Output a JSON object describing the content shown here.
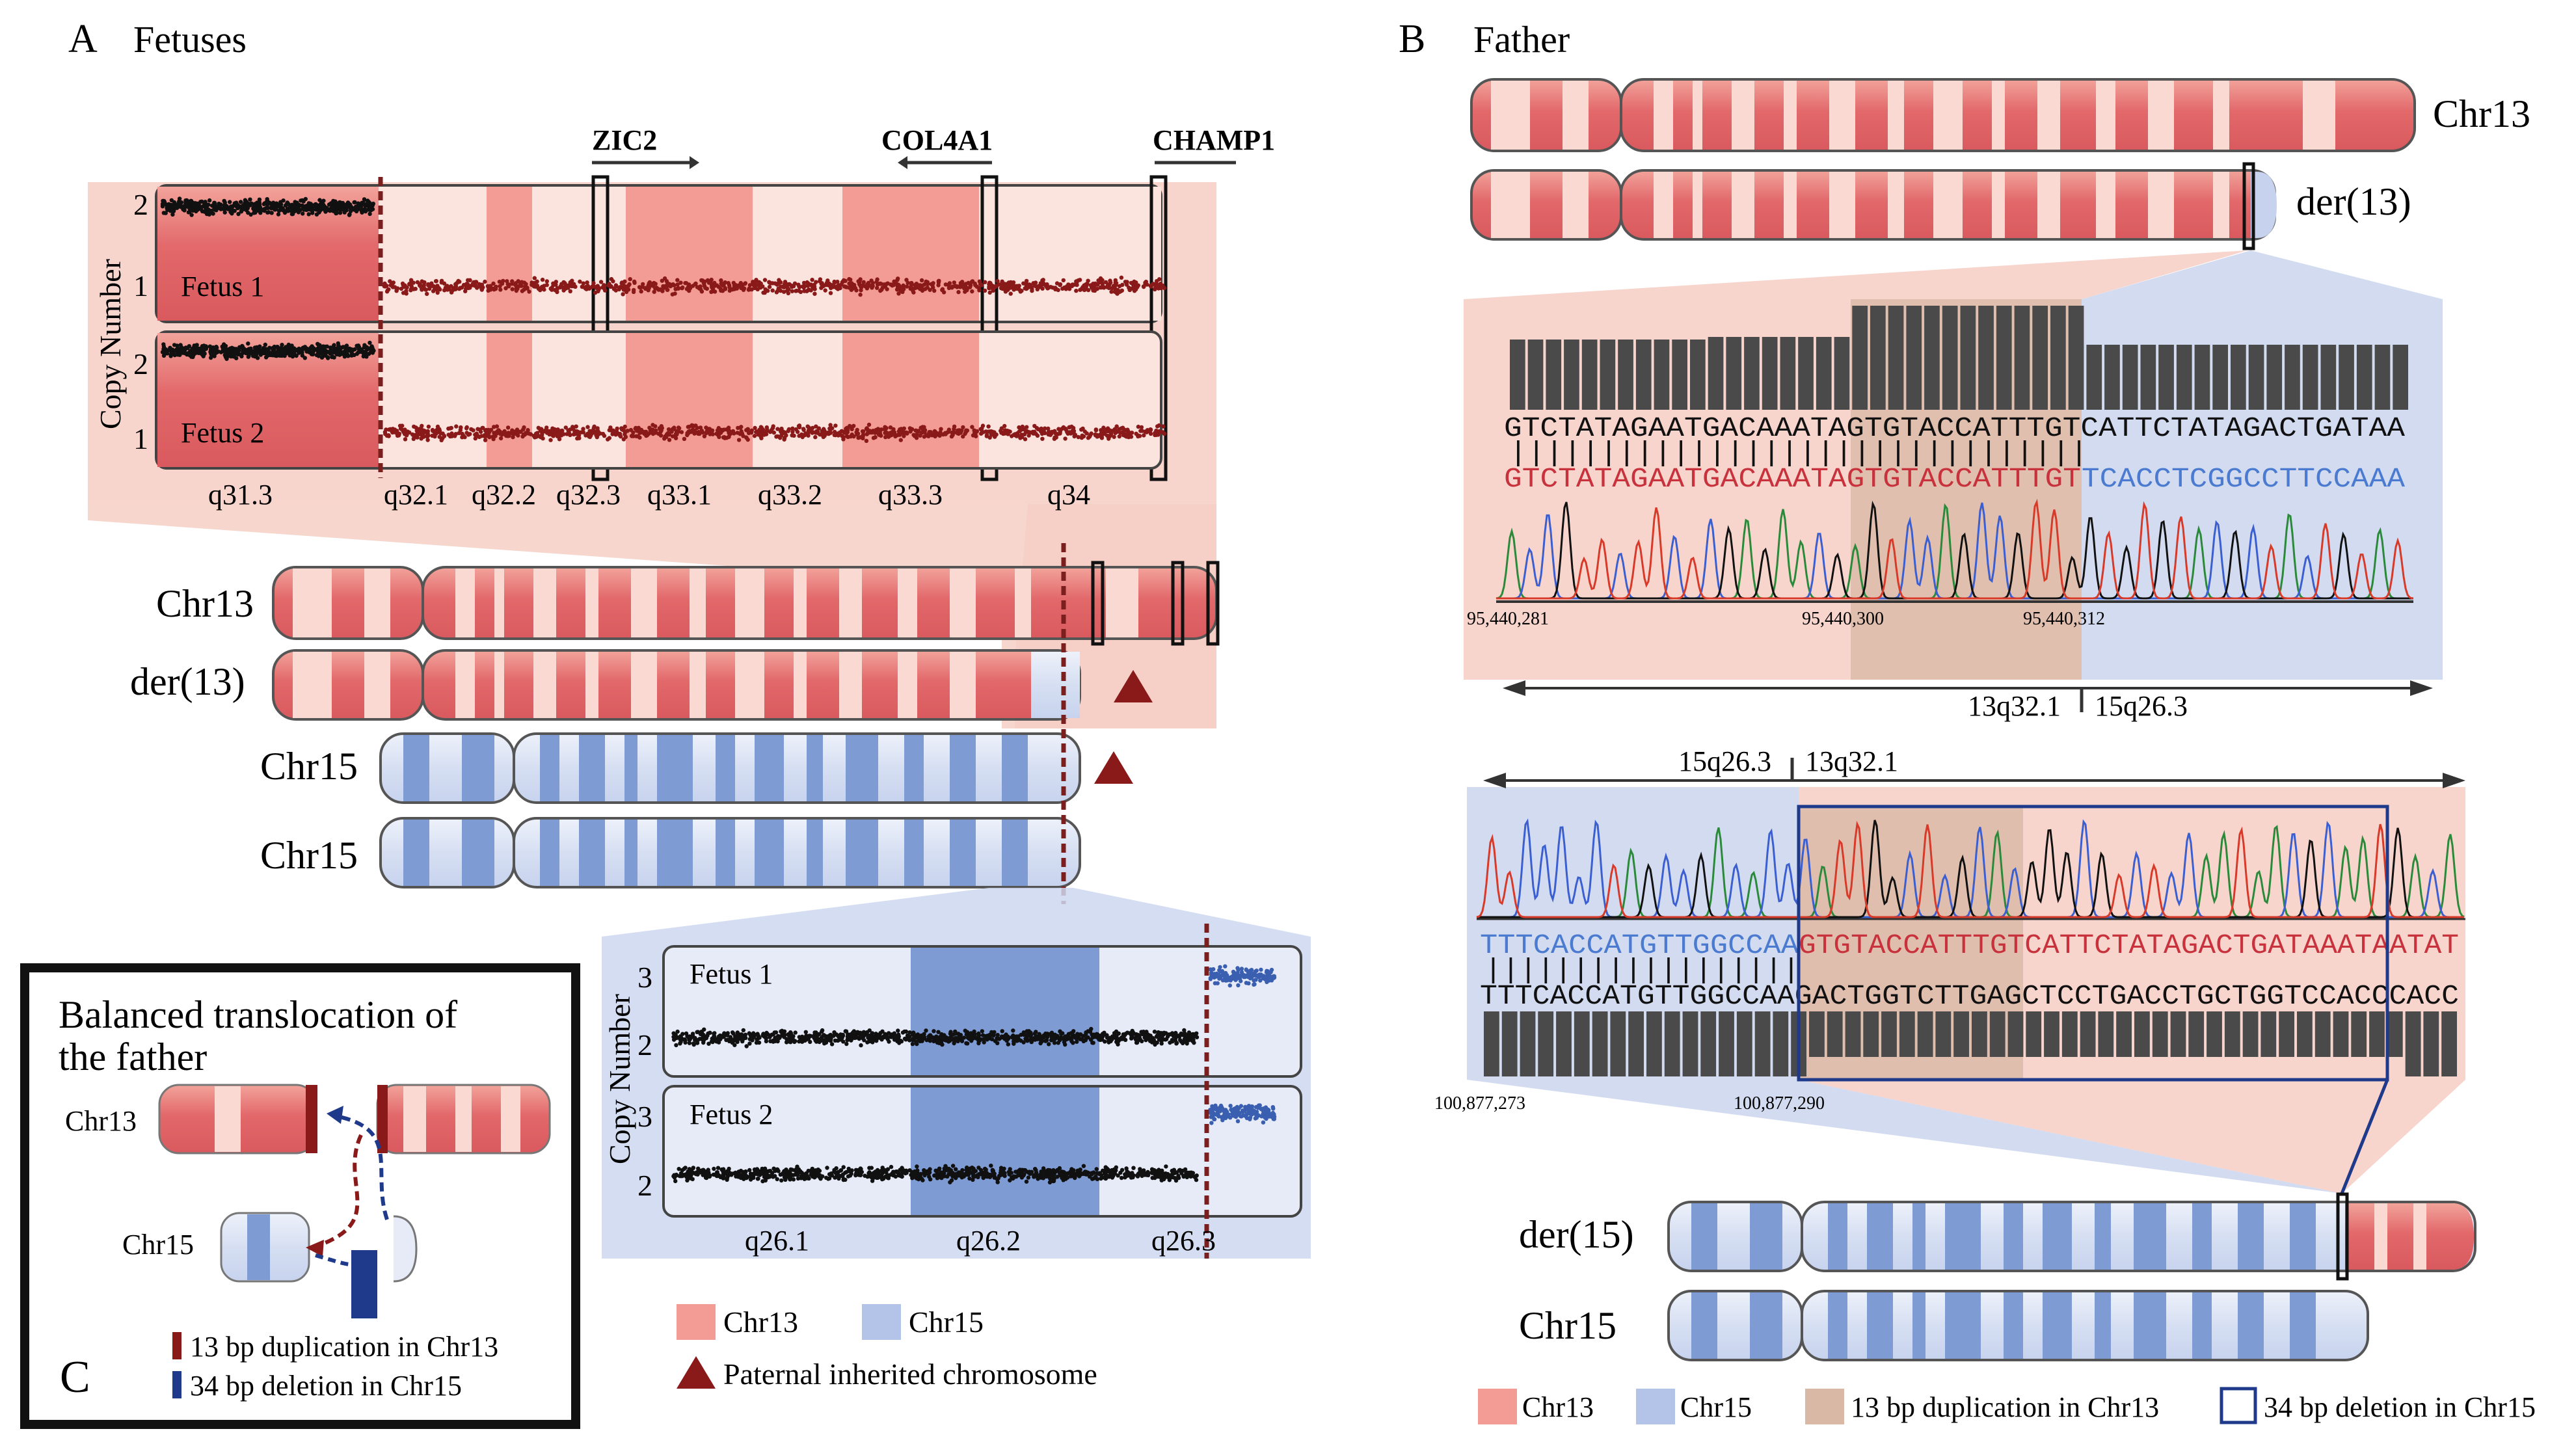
{
  "colors": {
    "chr13": "#e2686a",
    "chr13_light": "#f7c9c4",
    "chr13_zoom": "#f6cfc6",
    "chr15": "#7f9bd3",
    "chr15_light": "#d6dff2",
    "chr15_zoom": "#cdd7ee",
    "dup": "#d9b8a6",
    "darkred": "#8a1a1a",
    "navy": "#1f3a8a",
    "seq_red": "#c8323c",
    "seq_blue": "#4a7bd0"
  },
  "panelA": {
    "letter": "A",
    "title": "Fetuses",
    "genes": [
      "ZIC2",
      "COL4A1",
      "CHAMP1"
    ],
    "chr13_plot": {
      "ylabel": "Copy Number",
      "yticks": [
        "2",
        "1"
      ],
      "fetus1": "Fetus 1",
      "fetus2": "Fetus 2",
      "bands": [
        "q31.3",
        "q32.1",
        "q32.2",
        "q32.3",
        "q33.1",
        "q33.2",
        "q33.3",
        "q34"
      ]
    },
    "chromosomes": {
      "chr13": "Chr13",
      "der13": "der(13)",
      "chr15a": "Chr15",
      "chr15b": "Chr15"
    },
    "chr15_plot": {
      "ylabel": "Copy Number",
      "yticks": [
        "3",
        "2"
      ],
      "fetus1": "Fetus 1",
      "fetus2": "Fetus 2",
      "bands": [
        "q26.1",
        "q26.2",
        "q26.3"
      ]
    },
    "legend": {
      "chr13": "Chr13",
      "chr15": "Chr15",
      "paternal": "Paternal inherited chromosome"
    }
  },
  "panelB": {
    "letter": "B",
    "title": "Father",
    "chr13": "Chr13",
    "der13": "der(13)",
    "top_seq": {
      "ref": "GTCTATAGAATGACAAATAGTGTACCATTTGTCATTCTATAGACTGATAA",
      "bars": "||||||||||||||||||||||||||||||||",
      "red_part": "GTCTATAGAATGACAAATAGTGTACCATTTGT",
      "blue_part": "TCACCTCGGCCTTCCAAA",
      "positions": [
        "95,440,281",
        "95,440,300",
        "95,440,312"
      ],
      "left_band": "13q32.1",
      "right_band": "15q26.3"
    },
    "bottom_seq": {
      "blue_part": "TTTCACCATGTTGGCCAA",
      "red_part": "GTGTACCATTTGTCATTCTATAGACTGATAAATAATAT",
      "bars": "||||||||||||||||||",
      "ref": "TTTCACCATGTTGGCCAAGACTGGTCTTGAGCTCCTGACCTGCTGGTCCACCCACC",
      "positions": [
        "100,877,273",
        "100,877,290"
      ],
      "left_band": "15q26.3",
      "right_band": "13q32.1"
    },
    "der15": "der(15)",
    "chr15": "Chr15",
    "legend": {
      "chr13": "Chr13",
      "chr15": "Chr15",
      "dup": "13 bp duplication in Chr13",
      "del": "34 bp deletion in Chr15"
    }
  },
  "panelC": {
    "letter": "C",
    "title_line1": "Balanced translocation of",
    "title_line2": "the father",
    "chr13": "Chr13",
    "chr15": "Chr15",
    "dup": "13 bp duplication in Chr13",
    "del": "34 bp deletion in Chr15"
  }
}
